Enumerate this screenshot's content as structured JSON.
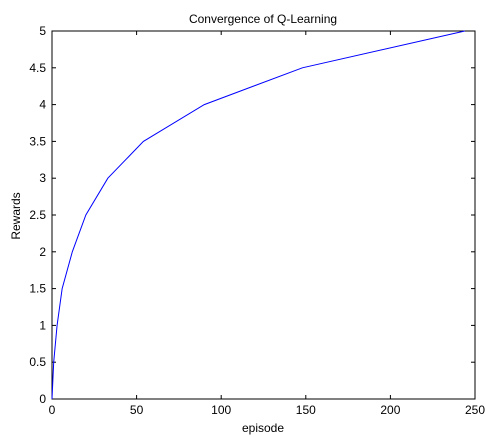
{
  "chart_data": {
    "type": "line",
    "title": "Convergence of Q-Learning",
    "xlabel": "episode",
    "ylabel": "Rewards",
    "xlim": [
      0,
      250
    ],
    "ylim": [
      0,
      5
    ],
    "xticks": [
      0,
      50,
      100,
      150,
      200,
      250
    ],
    "yticks": [
      0,
      0.5,
      1,
      1.5,
      2,
      2.5,
      3,
      3.5,
      4,
      4.5,
      5
    ],
    "xtick_labels": [
      "0",
      "50",
      "100",
      "150",
      "200",
      "250"
    ],
    "ytick_labels": [
      "0",
      "0.5",
      "1",
      "1.5",
      "2",
      "2.5",
      "3",
      "3.5",
      "4",
      "4.5",
      "5"
    ],
    "grid": false,
    "line_color": "#0000ff",
    "series": [
      {
        "x": [
          0,
          1,
          3,
          6,
          12,
          20,
          33,
          54,
          90,
          148,
          244
        ],
        "y": [
          0,
          0.5,
          1,
          1.5,
          2,
          2.5,
          3,
          3.5,
          4,
          4.5,
          5
        ]
      }
    ]
  }
}
